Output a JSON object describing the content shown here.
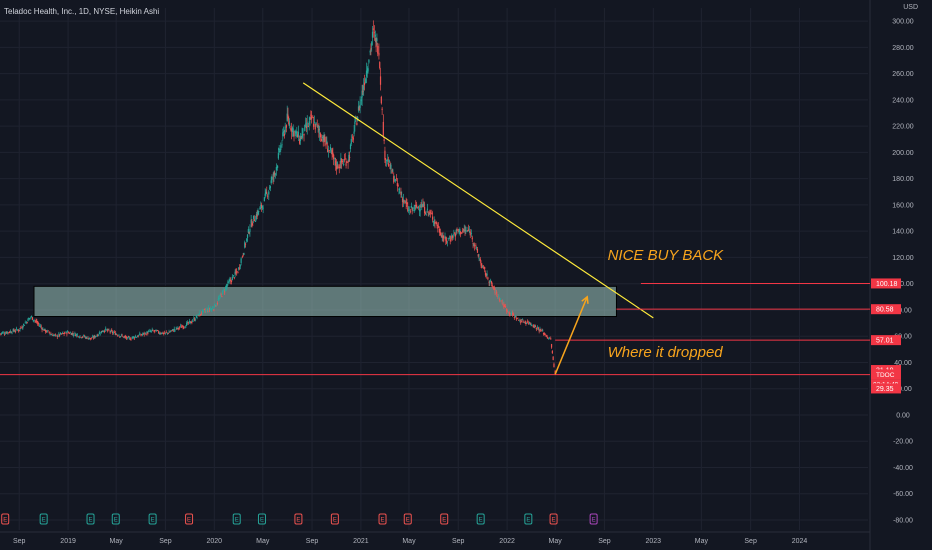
{
  "header": {
    "title": "Teladoc Health, Inc., 1D, NYSE, Heikin Ashi",
    "currency": "USD"
  },
  "colors": {
    "background": "#131722",
    "up": "#26a69a",
    "down": "#ef5350",
    "zone_fill": "#9ec9bf",
    "trendline": "#ffeb3b",
    "annotation": "#f7a41d",
    "level_line": "#f23645",
    "earnings_up": "#26a69a",
    "earnings_down": "#ef5350",
    "dividend": "#ab47bc",
    "axis_text": "#b2b5be"
  },
  "chart_data": {
    "type": "candlestick",
    "style": "Heikin Ashi",
    "ylim": [
      -80,
      310
    ],
    "y_ticks": [
      "300.00",
      "280.00",
      "260.00",
      "240.00",
      "220.00",
      "200.00",
      "180.00",
      "160.00",
      "140.00",
      "120.00",
      "100.00",
      "80.00",
      "60.00",
      "40.00",
      "20.00",
      "0.00",
      "-20.00",
      "-40.00",
      "-60.00",
      "-80.00"
    ],
    "x_ticks": [
      "Sep",
      "2019",
      "May",
      "Sep",
      "2020",
      "May",
      "Sep",
      "2021",
      "May",
      "Sep",
      "2022",
      "May",
      "Sep",
      "2023",
      "May",
      "Sep",
      "2024"
    ],
    "x_tick_dates": [
      "2018-09-01",
      "2019-01-01",
      "2019-05-01",
      "2019-09-01",
      "2020-01-01",
      "2020-05-01",
      "2020-09-01",
      "2021-01-01",
      "2021-05-01",
      "2021-09-01",
      "2022-01-01",
      "2022-05-01",
      "2022-09-01",
      "2023-01-01",
      "2023-05-01",
      "2023-09-01",
      "2024-01-01"
    ],
    "x_range": [
      "2018-07-15",
      "2024-06-20"
    ],
    "price_path": [
      [
        "2018-07-15",
        62
      ],
      [
        "2018-09-01",
        65
      ],
      [
        "2018-10-01",
        75
      ],
      [
        "2018-11-01",
        65
      ],
      [
        "2018-12-01",
        60
      ],
      [
        "2019-01-01",
        63
      ],
      [
        "2019-03-01",
        58
      ],
      [
        "2019-04-01",
        65
      ],
      [
        "2019-05-01",
        62
      ],
      [
        "2019-06-01",
        58
      ],
      [
        "2019-08-01",
        64
      ],
      [
        "2019-09-01",
        62
      ],
      [
        "2019-11-01",
        70
      ],
      [
        "2019-12-01",
        78
      ],
      [
        "2020-01-01",
        82
      ],
      [
        "2020-02-01",
        98
      ],
      [
        "2020-03-01",
        110
      ],
      [
        "2020-04-01",
        145
      ],
      [
        "2020-05-01",
        160
      ],
      [
        "2020-06-01",
        185
      ],
      [
        "2020-07-01",
        225
      ],
      [
        "2020-08-01",
        210
      ],
      [
        "2020-09-01",
        225
      ],
      [
        "2020-10-01",
        210
      ],
      [
        "2020-11-01",
        190
      ],
      [
        "2020-12-01",
        195
      ],
      [
        "2021-01-01",
        240
      ],
      [
        "2021-02-01",
        290
      ],
      [
        "2021-02-15",
        280
      ],
      [
        "2021-03-01",
        200
      ],
      [
        "2021-04-01",
        175
      ],
      [
        "2021-05-01",
        155
      ],
      [
        "2021-06-01",
        160
      ],
      [
        "2021-07-01",
        150
      ],
      [
        "2021-08-01",
        132
      ],
      [
        "2021-09-01",
        140
      ],
      [
        "2021-10-01",
        140
      ],
      [
        "2021-11-01",
        112
      ],
      [
        "2021-12-01",
        95
      ],
      [
        "2022-01-01",
        80
      ],
      [
        "2022-02-01",
        72
      ],
      [
        "2022-03-01",
        70
      ],
      [
        "2022-04-01",
        63
      ],
      [
        "2022-04-20",
        57
      ],
      [
        "2022-05-01",
        31
      ]
    ],
    "support_zone": {
      "from": "2018-07-15",
      "to": "2022-10-01",
      "low": 75,
      "high": 98
    },
    "trendline": {
      "start": [
        "2020-08-10",
        253
      ],
      "end": [
        "2023-01-01",
        74
      ]
    },
    "annotations": [
      {
        "text": "NICE BUY BACK",
        "date": "2022-06-01",
        "price": 118
      },
      {
        "text": "Where it dropped",
        "date": "2022-06-01",
        "price": 44
      }
    ],
    "arrow": {
      "from": [
        "2022-05-01",
        31
      ],
      "to": [
        "2022-07-20",
        90
      ]
    },
    "levels": [
      {
        "value": 100.18,
        "label": "100.18",
        "from": "2022-12-01"
      },
      {
        "value": 80.58,
        "label": "80.58",
        "from": "2022-10-01"
      },
      {
        "value": 57.01,
        "label": "57.01",
        "from": "2022-05-01"
      },
      {
        "value": 31.19,
        "label": "31.19",
        "from": "2022-05-01",
        "no_line": true
      },
      {
        "value": 30.78,
        "label": "30.78",
        "from": "2018-07-15",
        "ticker": "TDOC",
        "countdown": "02:14:49"
      },
      {
        "value": 29.35,
        "label": "29.35",
        "from": "2022-05-01",
        "no_line": true
      }
    ],
    "events": [
      {
        "date": "2018-07-28",
        "letter": "E",
        "type": "down"
      },
      {
        "date": "2018-11-01",
        "letter": "E",
        "type": "up"
      },
      {
        "date": "2019-02-26",
        "letter": "E",
        "type": "up"
      },
      {
        "date": "2019-04-30",
        "letter": "E",
        "type": "up"
      },
      {
        "date": "2019-07-31",
        "letter": "E",
        "type": "up"
      },
      {
        "date": "2019-10-30",
        "letter": "E",
        "type": "down"
      },
      {
        "date": "2020-02-26",
        "letter": "E",
        "type": "up"
      },
      {
        "date": "2020-04-29",
        "letter": "E",
        "type": "up"
      },
      {
        "date": "2020-07-29",
        "letter": "E",
        "type": "down"
      },
      {
        "date": "2020-10-28",
        "letter": "E",
        "type": "down"
      },
      {
        "date": "2021-02-24",
        "letter": "E",
        "type": "down"
      },
      {
        "date": "2021-04-28",
        "letter": "E",
        "type": "down"
      },
      {
        "date": "2021-07-28",
        "letter": "E",
        "type": "down"
      },
      {
        "date": "2021-10-27",
        "letter": "E",
        "type": "up"
      },
      {
        "date": "2022-02-23",
        "letter": "E",
        "type": "up"
      },
      {
        "date": "2022-04-27",
        "letter": "E",
        "type": "down"
      },
      {
        "date": "2022-08-05",
        "letter": "E",
        "type": "dividend"
      }
    ]
  }
}
